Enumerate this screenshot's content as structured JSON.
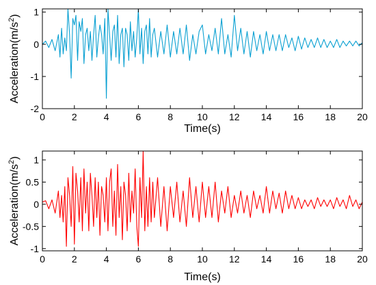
{
  "chart_data": [
    {
      "type": "line",
      "xlabel": "Time(s)",
      "ylabel_main": "Acceleration(m/s",
      "ylabel_sup": "2",
      "ylabel_tail": ")",
      "xlim": [
        0,
        20
      ],
      "ylim": [
        -2,
        1.1
      ],
      "xticks": [
        0,
        2,
        4,
        6,
        8,
        10,
        12,
        14,
        16,
        18,
        20
      ],
      "yticks": [
        -2,
        -1,
        0,
        1
      ],
      "ytick_labels": [
        "-2",
        "-1",
        "0",
        "1"
      ],
      "grid": false,
      "color": "#0aa0d2",
      "series": [
        {
          "x": [
            0.0,
            0.2,
            0.4,
            0.6,
            0.8,
            1.0,
            1.1,
            1.2,
            1.3,
            1.4,
            1.5,
            1.6,
            1.7,
            1.8,
            1.9,
            2.0,
            2.1,
            2.2,
            2.3,
            2.4,
            2.5,
            2.6,
            2.7,
            2.8,
            2.9,
            3.0,
            3.1,
            3.2,
            3.3,
            3.4,
            3.5,
            3.6,
            3.7,
            3.8,
            3.9,
            4.0,
            4.1,
            4.2,
            4.3,
            4.4,
            4.5,
            4.6,
            4.7,
            4.8,
            4.9,
            5.0,
            5.1,
            5.2,
            5.3,
            5.4,
            5.5,
            5.6,
            5.7,
            5.8,
            5.9,
            6.0,
            6.1,
            6.2,
            6.3,
            6.4,
            6.5,
            6.6,
            6.7,
            6.8,
            6.9,
            7.0,
            7.2,
            7.4,
            7.6,
            7.8,
            8.0,
            8.2,
            8.4,
            8.6,
            8.8,
            9.0,
            9.2,
            9.4,
            9.6,
            9.8,
            10.0,
            10.2,
            10.4,
            10.6,
            10.8,
            11.0,
            11.2,
            11.4,
            11.6,
            11.8,
            12.0,
            12.2,
            12.4,
            12.6,
            12.8,
            13.0,
            13.2,
            13.4,
            13.6,
            13.8,
            14.0,
            14.2,
            14.4,
            14.6,
            14.8,
            15.0,
            15.2,
            15.4,
            15.6,
            15.8,
            16.0,
            16.2,
            16.4,
            16.6,
            16.8,
            17.0,
            17.2,
            17.4,
            17.6,
            17.8,
            18.0,
            18.2,
            18.4,
            18.6,
            18.8,
            19.0,
            19.2,
            19.4,
            19.6,
            19.8,
            20.0
          ],
          "y": [
            0.0,
            0.1,
            -0.1,
            0.15,
            -0.2,
            0.3,
            -0.4,
            0.5,
            -0.3,
            0.2,
            -0.2,
            1.1,
            0.3,
            -1.05,
            0.8,
            0.6,
            0.9,
            -0.5,
            0.7,
            0.4,
            0.8,
            -0.6,
            0.3,
            0.5,
            -0.2,
            0.4,
            -0.5,
            0.3,
            0.9,
            -0.4,
            0.2,
            0.6,
            0.3,
            -0.3,
            0.8,
            -1.68,
            1.1,
            0.3,
            -0.5,
            0.4,
            0.6,
            -0.4,
            0.9,
            -0.6,
            0.3,
            0.5,
            -0.7,
            0.5,
            0.3,
            -0.5,
            0.7,
            -0.2,
            0.4,
            -0.4,
            0.2,
            1.1,
            -0.3,
            0.5,
            -0.6,
            0.4,
            0.6,
            -0.3,
            0.8,
            -0.4,
            0.3,
            0.5,
            -0.4,
            0.4,
            -0.3,
            0.6,
            -0.4,
            0.4,
            -0.3,
            0.5,
            -0.3,
            0.6,
            -0.5,
            0.3,
            -0.3,
            0.4,
            0.6,
            -0.3,
            0.3,
            -0.2,
            0.5,
            -0.3,
            0.8,
            -0.3,
            0.3,
            -0.4,
            0.9,
            -0.2,
            0.5,
            -0.3,
            0.4,
            -0.4,
            0.4,
            -0.2,
            0.3,
            -0.3,
            0.4,
            -0.2,
            0.3,
            -0.2,
            0.3,
            -0.2,
            0.3,
            -0.1,
            0.2,
            -0.2,
            0.25,
            -0.15,
            0.2,
            -0.1,
            0.15,
            -0.1,
            0.2,
            -0.1,
            0.15,
            -0.1,
            0.1,
            -0.1,
            0.15,
            -0.1,
            0.1,
            -0.05,
            0.1,
            -0.05,
            0.1,
            -0.05,
            0.05
          ]
        }
      ]
    },
    {
      "type": "line",
      "xlabel": "Time(s)",
      "ylabel_main": "Acceleration(m/s",
      "ylabel_sup": "2",
      "ylabel_tail": ")",
      "xlim": [
        0,
        20
      ],
      "ylim": [
        -1.05,
        1.2
      ],
      "xticks": [
        0,
        2,
        4,
        6,
        8,
        10,
        12,
        14,
        16,
        18,
        20
      ],
      "yticks": [
        -1,
        -0.5,
        0,
        0.5,
        1
      ],
      "ytick_labels": [
        "-1",
        "-0.5",
        "0",
        "0.5",
        "1"
      ],
      "grid": false,
      "color": "#ff0000",
      "series": [
        {
          "x": [
            0.0,
            0.2,
            0.4,
            0.6,
            0.8,
            1.0,
            1.1,
            1.2,
            1.3,
            1.4,
            1.5,
            1.6,
            1.7,
            1.8,
            1.9,
            2.0,
            2.1,
            2.2,
            2.3,
            2.4,
            2.5,
            2.6,
            2.7,
            2.8,
            2.9,
            3.0,
            3.1,
            3.2,
            3.3,
            3.4,
            3.5,
            3.6,
            3.7,
            3.8,
            3.9,
            4.0,
            4.1,
            4.2,
            4.3,
            4.4,
            4.5,
            4.6,
            4.7,
            4.8,
            4.9,
            5.0,
            5.1,
            5.2,
            5.3,
            5.4,
            5.5,
            5.6,
            5.7,
            5.8,
            5.9,
            6.0,
            6.1,
            6.2,
            6.3,
            6.4,
            6.5,
            6.6,
            6.7,
            6.8,
            6.9,
            7.0,
            7.2,
            7.4,
            7.6,
            7.8,
            8.0,
            8.2,
            8.4,
            8.6,
            8.8,
            9.0,
            9.2,
            9.4,
            9.6,
            9.8,
            10.0,
            10.2,
            10.4,
            10.6,
            10.8,
            11.0,
            11.2,
            11.4,
            11.6,
            11.8,
            12.0,
            12.2,
            12.4,
            12.6,
            12.8,
            13.0,
            13.2,
            13.4,
            13.6,
            13.8,
            14.0,
            14.2,
            14.4,
            14.6,
            14.8,
            15.0,
            15.2,
            15.4,
            15.6,
            15.8,
            16.0,
            16.2,
            16.4,
            16.6,
            16.8,
            17.0,
            17.2,
            17.4,
            17.6,
            17.8,
            18.0,
            18.2,
            18.4,
            18.6,
            18.8,
            19.0,
            19.2,
            19.4,
            19.6,
            19.8,
            20.0
          ],
          "y": [
            0.05,
            0.08,
            -0.1,
            0.1,
            -0.2,
            0.3,
            -0.3,
            0.2,
            -0.4,
            0.4,
            -0.95,
            0.6,
            0.2,
            -0.5,
            0.85,
            -0.9,
            0.7,
            0.3,
            -0.4,
            0.6,
            -0.6,
            0.8,
            -0.2,
            0.5,
            -0.6,
            0.7,
            0.2,
            -0.5,
            0.6,
            -0.3,
            0.5,
            -0.7,
            0.4,
            0.2,
            -0.4,
            0.6,
            -0.6,
            0.5,
            0.8,
            -0.5,
            0.3,
            -0.7,
            0.9,
            -0.3,
            0.4,
            -0.8,
            0.5,
            0.2,
            -0.6,
            0.7,
            -0.4,
            0.3,
            -0.2,
            0.8,
            -0.5,
            -0.95,
            0.6,
            -0.3,
            1.2,
            -0.6,
            0.4,
            -0.5,
            0.6,
            -0.4,
            0.5,
            -0.3,
            0.6,
            -0.5,
            0.4,
            -0.6,
            0.4,
            -0.3,
            0.5,
            -0.4,
            0.3,
            -0.5,
            0.6,
            -0.3,
            0.4,
            -0.4,
            0.5,
            -0.3,
            0.4,
            -0.3,
            0.5,
            -0.4,
            0.3,
            -0.2,
            0.4,
            -0.3,
            0.2,
            -0.2,
            0.3,
            -0.2,
            0.2,
            -0.3,
            0.3,
            -0.1,
            0.2,
            -0.2,
            0.4,
            -0.2,
            0.3,
            -0.1,
            0.25,
            -0.2,
            0.3,
            -0.1,
            0.2,
            -0.1,
            0.15,
            -0.1,
            0.1,
            -0.05,
            0.1,
            -0.1,
            0.15,
            -0.05,
            0.1,
            -0.05,
            0.1,
            -0.1,
            0.15,
            -0.05,
            0.1,
            -0.1,
            0.2,
            -0.05,
            0.1,
            -0.1,
            0.05
          ]
        }
      ]
    }
  ]
}
